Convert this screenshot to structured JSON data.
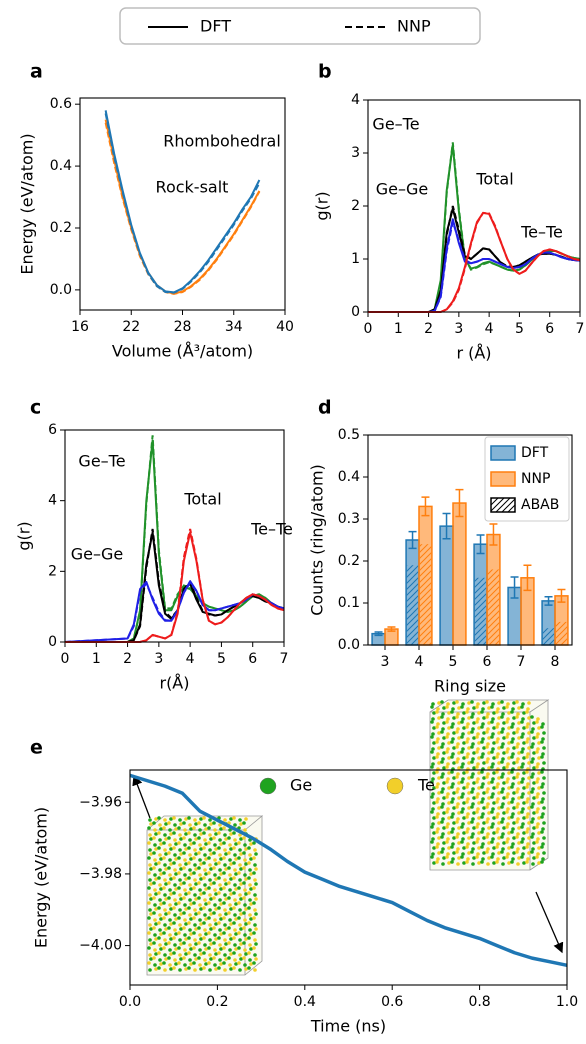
{
  "figure_legend": [
    {
      "name": "DFT",
      "style": "solid"
    },
    {
      "name": "NNP",
      "style": "dashed"
    }
  ],
  "chart_data": [
    {
      "type": "line",
      "panel_label": "a",
      "xlabel": "Volume (Å³/atom)",
      "ylabel": "Energy (eV/atom)",
      "xlim": [
        16,
        40
      ],
      "xticks": [
        16,
        22,
        28,
        34,
        40
      ],
      "ylim": [
        -0.065,
        0.62
      ],
      "yticks": [
        {
          "value": 0,
          "label": "0.0"
        },
        0.2,
        0.4,
        0.6
      ],
      "x": [
        19,
        20,
        21,
        22,
        23,
        24,
        25,
        26,
        27,
        28,
        29,
        30,
        31,
        32,
        33,
        34,
        35,
        36,
        37
      ],
      "series": [
        {
          "name": "Rhombohedral",
          "color": "#ff7f0e",
          "values": [
            0.55,
            0.42,
            0.3,
            0.2,
            0.115,
            0.055,
            0.015,
            -0.005,
            -0.012,
            -0.005,
            0.012,
            0.035,
            0.065,
            0.1,
            0.14,
            0.18,
            0.225,
            0.27,
            0.32
          ],
          "values_nnp": [
            0.54,
            0.41,
            0.295,
            0.195,
            0.11,
            0.05,
            0.012,
            -0.007,
            -0.013,
            -0.007,
            0.01,
            0.032,
            0.062,
            0.097,
            0.137,
            0.177,
            0.222,
            0.267,
            0.318
          ]
        },
        {
          "name": "Rock-salt",
          "color": "#1f77b4",
          "values": [
            0.58,
            0.44,
            0.32,
            0.21,
            0.12,
            0.055,
            0.015,
            -0.005,
            -0.008,
            0.005,
            0.03,
            0.06,
            0.095,
            0.135,
            0.175,
            0.215,
            0.26,
            0.3,
            0.355
          ],
          "values_nnp": [
            0.57,
            0.43,
            0.315,
            0.205,
            0.118,
            0.052,
            0.012,
            -0.007,
            -0.009,
            0.003,
            0.027,
            0.056,
            0.09,
            0.13,
            0.17,
            0.21,
            0.255,
            0.295,
            0.345
          ]
        }
      ]
    },
    {
      "type": "line",
      "panel_label": "b",
      "xlabel": "r (Å)",
      "ylabel": "g(r)",
      "xlim": [
        0,
        7
      ],
      "xticks": [
        0,
        1,
        2,
        3,
        4,
        5,
        6,
        7
      ],
      "ylim": [
        0,
        4
      ],
      "yticks": [
        0,
        1,
        2,
        3,
        4
      ],
      "x": [
        0,
        2.0,
        2.2,
        2.4,
        2.6,
        2.8,
        3.0,
        3.2,
        3.4,
        3.6,
        3.8,
        4.0,
        4.2,
        4.4,
        4.6,
        4.8,
        5.0,
        5.2,
        5.4,
        5.6,
        5.8,
        6.0,
        6.2,
        6.4,
        6.6,
        6.8,
        7.0
      ],
      "series": [
        {
          "name": "Ge–Te",
          "color": "#21922a",
          "values": [
            0,
            0,
            0.05,
            0.6,
            2.3,
            3.15,
            1.9,
            1.0,
            0.82,
            0.85,
            0.92,
            0.95,
            0.9,
            0.85,
            0.8,
            0.78,
            0.8,
            0.88,
            0.98,
            1.08,
            1.12,
            1.15,
            1.15,
            1.1,
            1.05,
            1.02,
            1.0
          ],
          "values_nnp": [
            0,
            0,
            0.05,
            0.55,
            2.25,
            3.2,
            1.95,
            1.02,
            0.8,
            0.84,
            0.9,
            0.94,
            0.9,
            0.85,
            0.8,
            0.78,
            0.8,
            0.88,
            0.98,
            1.08,
            1.13,
            1.16,
            1.15,
            1.1,
            1.05,
            1.02,
            1.0
          ]
        },
        {
          "name": "Total",
          "color": "#000000",
          "values": [
            0,
            0,
            0.05,
            0.4,
            1.5,
            1.95,
            1.5,
            1.05,
            1.0,
            1.1,
            1.2,
            1.18,
            1.05,
            0.92,
            0.85,
            0.85,
            0.88,
            0.95,
            1.02,
            1.08,
            1.1,
            1.1,
            1.08,
            1.04,
            1.0,
            0.98,
            0.97
          ],
          "values_nnp": [
            0,
            0,
            0.04,
            0.38,
            1.45,
            2.0,
            1.55,
            1.08,
            1.0,
            1.1,
            1.2,
            1.18,
            1.05,
            0.93,
            0.86,
            0.85,
            0.88,
            0.95,
            1.02,
            1.08,
            1.1,
            1.1,
            1.08,
            1.04,
            1.0,
            0.98,
            0.97
          ]
        },
        {
          "name": "Ge–Ge",
          "color": "#2020e6",
          "values": [
            0,
            0,
            0.02,
            0.3,
            1.2,
            1.75,
            1.3,
            0.95,
            0.92,
            0.95,
            1.0,
            1.0,
            0.95,
            0.9,
            0.85,
            0.83,
            0.85,
            0.9,
            1.0,
            1.08,
            1.12,
            1.12,
            1.08,
            1.03,
            1.0,
            0.98,
            0.97
          ],
          "values_nnp": [
            0,
            0,
            0.02,
            0.28,
            1.15,
            1.7,
            1.35,
            0.98,
            0.92,
            0.95,
            1.0,
            1.0,
            0.95,
            0.9,
            0.85,
            0.83,
            0.85,
            0.9,
            1.0,
            1.08,
            1.12,
            1.12,
            1.08,
            1.03,
            1.0,
            0.98,
            0.97
          ]
        },
        {
          "name": "Te–Te",
          "color": "#ee1c1c",
          "values": [
            0,
            0,
            0,
            0,
            0.05,
            0.2,
            0.45,
            0.85,
            1.3,
            1.7,
            1.87,
            1.85,
            1.6,
            1.3,
            1.0,
            0.8,
            0.72,
            0.78,
            0.92,
            1.05,
            1.15,
            1.18,
            1.15,
            1.1,
            1.05,
            1.0,
            0.98
          ],
          "values_nnp": [
            0,
            0,
            0,
            0,
            0.05,
            0.18,
            0.42,
            0.82,
            1.28,
            1.68,
            1.87,
            1.86,
            1.62,
            1.3,
            1.0,
            0.8,
            0.72,
            0.78,
            0.92,
            1.05,
            1.15,
            1.18,
            1.15,
            1.1,
            1.05,
            1.0,
            0.98
          ]
        }
      ]
    },
    {
      "type": "line",
      "panel_label": "c",
      "xlabel": "r(Å)",
      "ylabel": "g(r)",
      "xlim": [
        0,
        7
      ],
      "xticks": [
        0,
        1,
        2,
        3,
        4,
        5,
        6,
        7
      ],
      "ylim": [
        0,
        6
      ],
      "yticks": [
        0,
        2,
        4,
        6
      ],
      "x": [
        0,
        2.0,
        2.2,
        2.4,
        2.6,
        2.8,
        3.0,
        3.2,
        3.4,
        3.6,
        3.8,
        4.0,
        4.2,
        4.4,
        4.6,
        4.8,
        5.0,
        5.2,
        5.4,
        5.6,
        5.8,
        6.0,
        6.2,
        6.4,
        6.6,
        6.8,
        7.0
      ],
      "series": [
        {
          "name": "Ge–Te",
          "color": "#21922a",
          "values": [
            0,
            0,
            0.1,
            0.9,
            4.0,
            5.7,
            2.5,
            0.9,
            0.9,
            1.3,
            1.55,
            1.5,
            1.3,
            1.1,
            1.0,
            0.95,
            0.9,
            0.85,
            0.9,
            1.0,
            1.15,
            1.3,
            1.35,
            1.25,
            1.1,
            1.0,
            0.95
          ],
          "values_nnp": [
            0,
            0,
            0.1,
            0.85,
            3.9,
            5.85,
            2.6,
            0.95,
            0.95,
            1.35,
            1.6,
            1.52,
            1.3,
            1.1,
            1.0,
            0.95,
            0.9,
            0.85,
            0.9,
            1.0,
            1.15,
            1.3,
            1.35,
            1.25,
            1.1,
            1.0,
            0.95
          ]
        },
        {
          "name": "Total",
          "color": "#000000",
          "values": [
            0,
            0,
            0.05,
            0.5,
            2.2,
            3.1,
            1.6,
            0.8,
            0.65,
            0.9,
            1.5,
            1.65,
            1.2,
            0.85,
            0.8,
            0.75,
            0.78,
            0.9,
            1.0,
            1.1,
            1.25,
            1.3,
            1.25,
            1.15,
            1.1,
            1.0,
            0.95
          ],
          "values_nnp": [
            0,
            0,
            0.05,
            0.45,
            2.1,
            3.2,
            1.7,
            0.85,
            0.68,
            0.9,
            1.5,
            1.7,
            1.25,
            0.88,
            0.78,
            0.75,
            0.78,
            0.9,
            1.0,
            1.1,
            1.25,
            1.3,
            1.25,
            1.15,
            1.1,
            1.0,
            0.95
          ]
        },
        {
          "name": "Ge–Ge",
          "color": "#2020e6",
          "values": [
            0,
            0.1,
            0.5,
            1.5,
            1.7,
            1.2,
            0.8,
            0.6,
            0.6,
            0.9,
            1.4,
            1.72,
            1.45,
            1.05,
            0.9,
            0.9,
            0.95,
            1.0,
            1.05,
            1.1,
            1.2,
            1.35,
            1.3,
            1.2,
            1.1,
            1.0,
            0.95
          ],
          "values_nnp": [
            0,
            0.1,
            0.45,
            1.45,
            1.65,
            1.25,
            0.85,
            0.62,
            0.6,
            0.9,
            1.4,
            1.68,
            1.45,
            1.05,
            0.9,
            0.9,
            0.95,
            1.0,
            1.05,
            1.1,
            1.2,
            1.35,
            1.3,
            1.2,
            1.1,
            1.0,
            0.95
          ]
        },
        {
          "name": "Te–Te",
          "color": "#ee1c1c",
          "values": [
            0,
            0,
            0,
            0,
            0.05,
            0.2,
            0.15,
            0.1,
            0.2,
            0.8,
            2.3,
            3.1,
            2.3,
            1.2,
            0.6,
            0.5,
            0.55,
            0.7,
            0.9,
            1.1,
            1.25,
            1.35,
            1.3,
            1.2,
            1.05,
            0.95,
            0.9
          ],
          "values_nnp": [
            0,
            0,
            0,
            0,
            0.05,
            0.2,
            0.15,
            0.1,
            0.2,
            0.85,
            2.4,
            3.2,
            2.35,
            1.2,
            0.6,
            0.5,
            0.55,
            0.7,
            0.9,
            1.1,
            1.25,
            1.35,
            1.3,
            1.2,
            1.05,
            0.95,
            0.9
          ]
        }
      ]
    },
    {
      "type": "bar",
      "panel_label": "d",
      "xlabel": "Ring size",
      "ylabel": "Counts (ring/atom)",
      "categories": [
        "3",
        "4",
        "5",
        "6",
        "7",
        "8"
      ],
      "ylim": [
        0,
        0.5
      ],
      "yticks": [
        {
          "value": 0,
          "label": "0.0"
        },
        0.1,
        0.2,
        0.3,
        0.4,
        0.5
      ],
      "legend": "upper right",
      "hatch_name": "ABAB",
      "series": [
        {
          "name": "DFT",
          "color": "#1f77b4",
          "values": [
            0.027,
            0.25,
            0.283,
            0.24,
            0.137,
            0.105
          ],
          "errors": [
            0.004,
            0.02,
            0.03,
            0.022,
            0.025,
            0.01
          ],
          "abab": [
            null,
            0.19,
            null,
            0.16,
            null,
            0.04
          ]
        },
        {
          "name": "NNP",
          "color": "#ff7f0e",
          "values": [
            0.038,
            0.33,
            0.338,
            0.263,
            0.16,
            0.117
          ],
          "errors": [
            0.005,
            0.022,
            0.032,
            0.025,
            0.03,
            0.015
          ],
          "abab": [
            null,
            0.24,
            null,
            0.18,
            null,
            0.055
          ]
        }
      ]
    },
    {
      "type": "line",
      "panel_label": "e",
      "xlabel": "Time (ns)",
      "ylabel": "Energy (eV/atom)",
      "xlim": [
        0,
        1
      ],
      "xticks": [
        {
          "value": 0,
          "label": "0.0"
        },
        0.2,
        0.4,
        0.6,
        0.8,
        {
          "value": 1,
          "label": "1.0"
        }
      ],
      "ylim": [
        -4.011,
        -3.951
      ],
      "yticks": [
        {
          "value": -3.96,
          "label": "−3.96"
        },
        {
          "value": -3.98,
          "label": "−3.98"
        },
        {
          "value": -4.0,
          "label": "−4.00"
        }
      ],
      "atom_legend": [
        {
          "name": "Ge",
          "color": "#1fa31f"
        },
        {
          "name": "Te",
          "color": "#f2cf2a"
        }
      ],
      "x": [
        0,
        0.04,
        0.08,
        0.12,
        0.16,
        0.2,
        0.24,
        0.28,
        0.32,
        0.36,
        0.4,
        0.44,
        0.48,
        0.52,
        0.56,
        0.6,
        0.64,
        0.68,
        0.72,
        0.76,
        0.8,
        0.84,
        0.88,
        0.92,
        0.96,
        1.0
      ],
      "series": [
        {
          "color": "#1f77b4",
          "values": [
            -3.9525,
            -3.954,
            -3.9555,
            -3.9575,
            -3.9625,
            -3.965,
            -3.9675,
            -3.97,
            -3.973,
            -3.9765,
            -3.9795,
            -3.9815,
            -3.9835,
            -3.985,
            -3.9865,
            -3.988,
            -3.9905,
            -3.993,
            -3.995,
            -3.9965,
            -3.998,
            -4.0,
            -4.002,
            -4.0035,
            -4.0045,
            -4.0055
          ]
        }
      ]
    }
  ]
}
